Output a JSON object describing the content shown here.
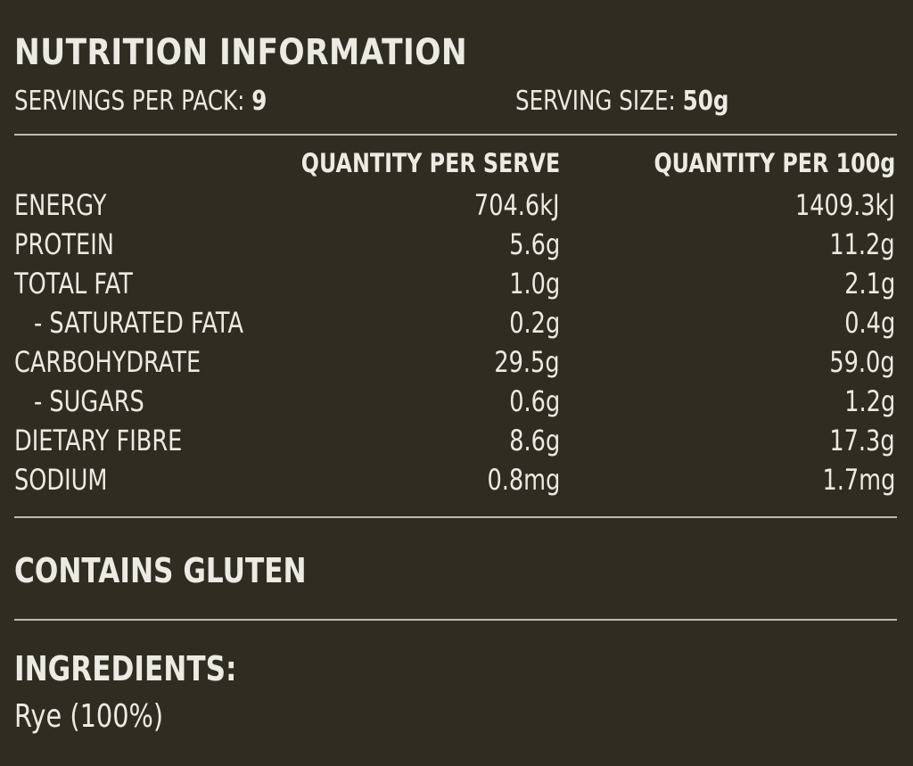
{
  "panel": {
    "title": "NUTRITION INFORMATION",
    "servings_label": "SERVINGS PER PACK:",
    "servings_value": "9",
    "serving_size_label": "SERVING SIZE:",
    "serving_size_value": "50g"
  },
  "table": {
    "columns": [
      "QUANTITY PER SERVE",
      "QUANTITY PER 100g"
    ],
    "rows": [
      {
        "label": "ENERGY",
        "per_serve": "704.6kJ",
        "per_100g": "1409.3kJ"
      },
      {
        "label": "PROTEIN",
        "per_serve": "5.6g",
        "per_100g": "11.2g"
      },
      {
        "label": "TOTAL FAT",
        "per_serve": "1.0g",
        "per_100g": "2.1g"
      },
      {
        "label": "- SATURATED FATA",
        "per_serve": "0.2g",
        "per_100g": "0.4g"
      },
      {
        "label": "CARBOHYDRATE",
        "per_serve": "29.5g",
        "per_100g": "59.0g"
      },
      {
        "label": "- SUGARS",
        "per_serve": "0.6g",
        "per_100g": "1.2g"
      },
      {
        "label": "DIETARY FIBRE",
        "per_serve": "8.6g",
        "per_100g": "17.3g"
      },
      {
        "label": "SODIUM",
        "per_serve": "0.8mg",
        "per_100g": "1.7mg"
      }
    ]
  },
  "allergen": {
    "text": "CONTAINS GLUTEN"
  },
  "ingredients": {
    "heading": "INGREDIENTS:",
    "text": "Rye (100%)"
  },
  "colors": {
    "background": "#2f2d22",
    "text": "#ecebe3",
    "rule": "#bdbab0"
  }
}
